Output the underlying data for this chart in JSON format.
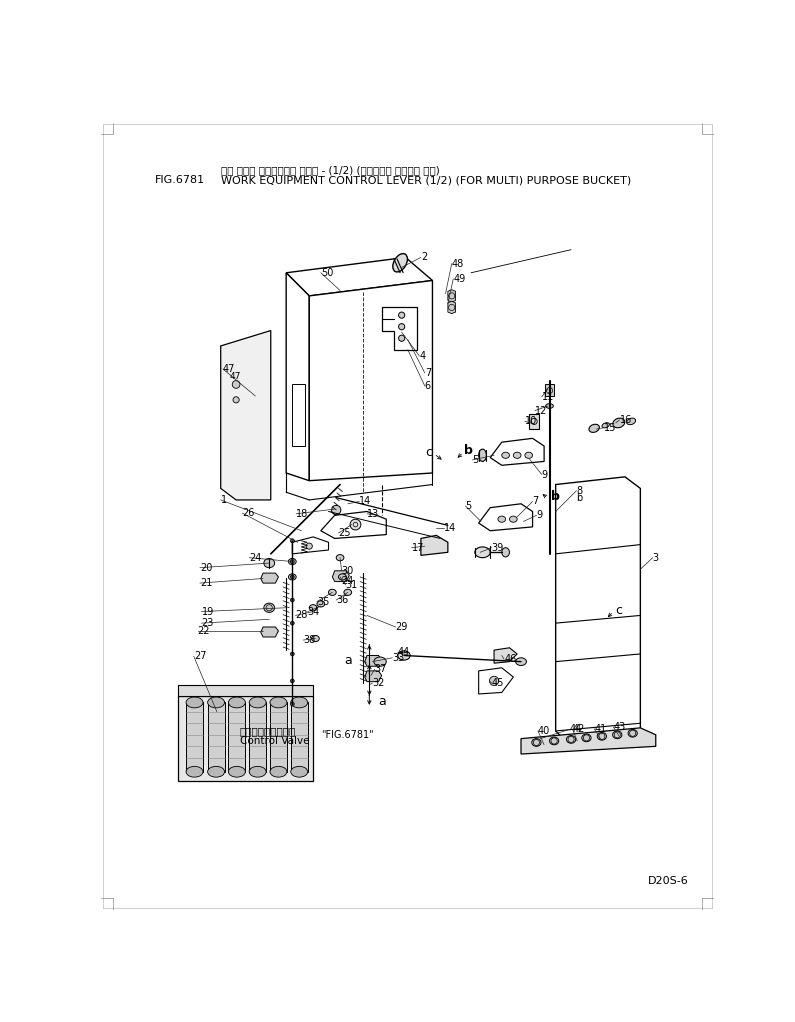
{
  "fig_number": "FIG.6781",
  "title_jp": "サギ ヨウキ コントロール レバー - (1/2) (バンショウ バケット ヨウ)",
  "title_en": "WORK EQUIPMENT CONTROL LEVER (1/2) (FOR MULTI) PURPOSE BUCKET)",
  "model": "D20S-6",
  "bg_color": "#ffffff",
  "lc": "#000000",
  "tc": "#000000"
}
